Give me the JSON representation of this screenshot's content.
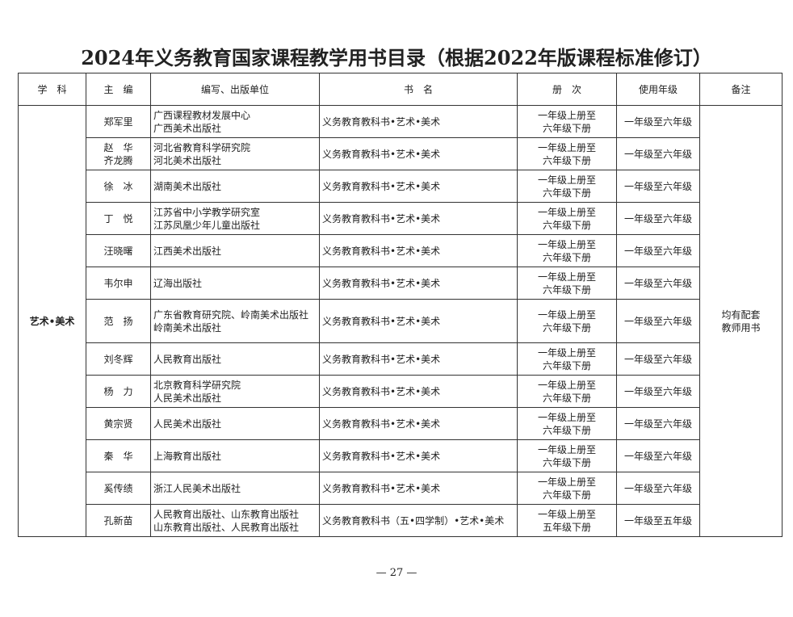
{
  "title": "2024年义务教育国家课程教学用书目录（根据2022年版课程标准修订）",
  "headers": [
    "学　科",
    "主　编",
    "编写、出版单位",
    "书　名",
    "册　次",
    "使用年级",
    "备注"
  ],
  "subject": "艺术•美术",
  "note": "均有配套教师用书",
  "rows": [
    {
      "editor": "郑军里",
      "publisher": [
        "广西课程教材发展中心",
        "广西美术出版社"
      ],
      "book": "义务教育教科书•艺术•美术",
      "volume": [
        "一年级上册至",
        "六年级下册"
      ],
      "grades": "一年级至六年级"
    },
    {
      "editor": "赵　华\n齐龙腾",
      "publisher": [
        "河北省教育科学研究院",
        "河北美术出版社"
      ],
      "book": "义务教育教科书•艺术•美术",
      "volume": [
        "一年级上册至",
        "六年级下册"
      ],
      "grades": "一年级至六年级"
    },
    {
      "editor": "徐　冰",
      "publisher": [
        "湖南美术出版社"
      ],
      "book": "义务教育教科书•艺术•美术",
      "volume": [
        "一年级上册至",
        "六年级下册"
      ],
      "grades": "一年级至六年级"
    },
    {
      "editor": "丁　悦",
      "publisher": [
        "江苏省中小学教学研究室",
        "江苏凤凰少年儿童出版社"
      ],
      "book": "义务教育教科书•艺术•美术",
      "volume": [
        "一年级上册至",
        "六年级下册"
      ],
      "grades": "一年级至六年级"
    },
    {
      "editor": "汪晓曙",
      "publisher": [
        "江西美术出版社"
      ],
      "book": "义务教育教科书•艺术•美术",
      "volume": [
        "一年级上册至",
        "六年级下册"
      ],
      "grades": "一年级至六年级"
    },
    {
      "editor": "韦尔申",
      "publisher": [
        "辽海出版社"
      ],
      "book": "义务教育教科书•艺术•美术",
      "volume": [
        "一年级上册至",
        "六年级下册"
      ],
      "grades": "一年级至六年级"
    },
    {
      "editor": "范　扬",
      "publisher": [
        "广东省教育研究院、岭南美术出版社",
        "岭南美术出版社"
      ],
      "book": "义务教育教科书•艺术•美术",
      "volume": [
        "一年级上册至",
        "六年级下册"
      ],
      "grades": "一年级至六年级"
    },
    {
      "editor": "刘冬辉",
      "publisher": [
        "人民教育出版社"
      ],
      "book": "义务教育教科书•艺术•美术",
      "volume": [
        "一年级上册至",
        "六年级下册"
      ],
      "grades": "一年级至六年级"
    },
    {
      "editor": "杨　力",
      "publisher": [
        "北京教育科学研究院",
        "人民美术出版社"
      ],
      "book": "义务教育教科书•艺术•美术",
      "volume": [
        "一年级上册至",
        "六年级下册"
      ],
      "grades": "一年级至六年级"
    },
    {
      "editor": "黄宗贤",
      "publisher": [
        "人民美术出版社"
      ],
      "book": "义务教育教科书•艺术•美术",
      "volume": [
        "一年级上册至",
        "六年级下册"
      ],
      "grades": "一年级至六年级"
    },
    {
      "editor": "秦　华",
      "publisher": [
        "上海教育出版社"
      ],
      "book": "义务教育教科书•艺术•美术",
      "volume": [
        "一年级上册至",
        "六年级下册"
      ],
      "grades": "一年级至六年级"
    },
    {
      "editor": "奚传绩",
      "publisher": [
        "浙江人民美术出版社"
      ],
      "book": "义务教育教科书•艺术•美术",
      "volume": [
        "一年级上册至",
        "六年级下册"
      ],
      "grades": "一年级至六年级"
    },
    {
      "editor": "孔新苗",
      "publisher": [
        "人民教育出版社、山东教育出版社",
        "山东教育出版社、人民教育出版社"
      ],
      "book": "义务教育教科书（五•四学制）•艺术•美术",
      "volume": [
        "一年级上册至",
        "五年级下册"
      ],
      "grades": "一年级至五年级"
    }
  ],
  "page_number": "— 27 —"
}
